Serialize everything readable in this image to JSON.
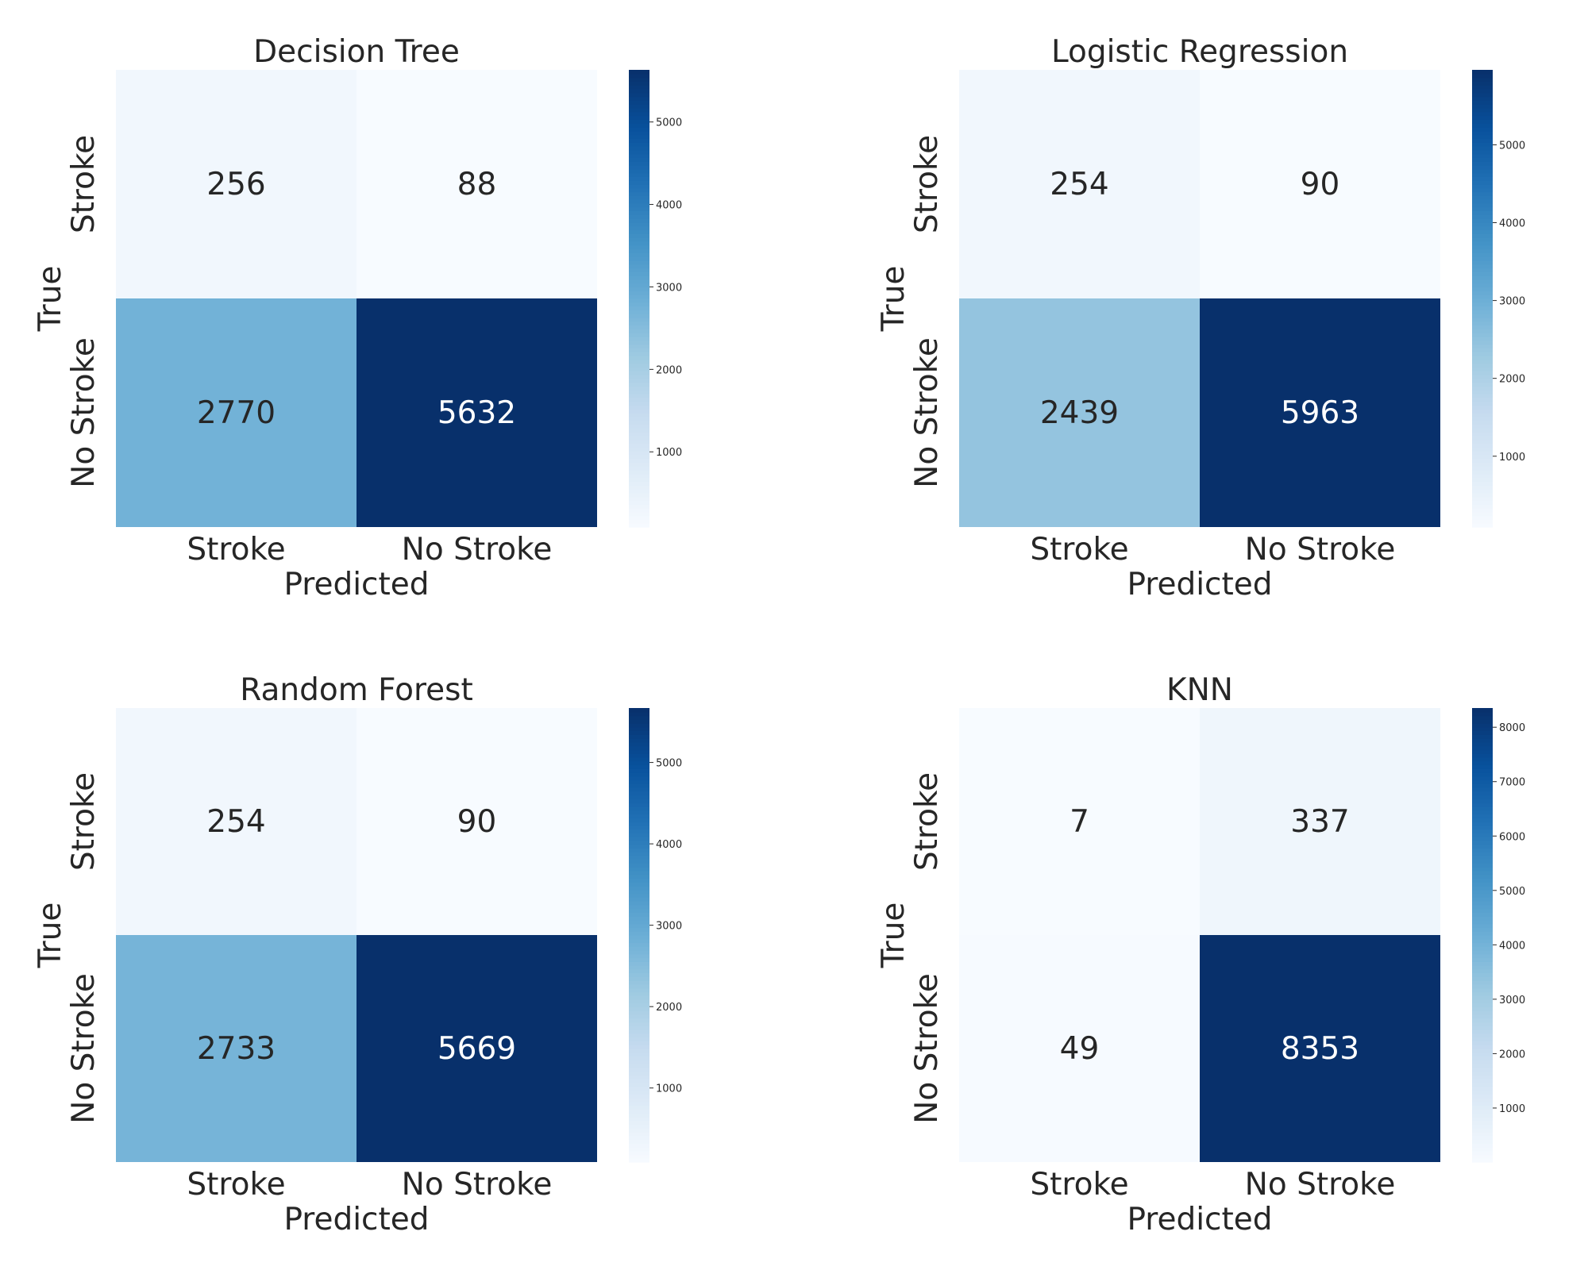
{
  "chart_data": [
    {
      "type": "heatmap",
      "title": "Decision Tree",
      "xlabel": "Predicted",
      "ylabel": "True",
      "x_categories": [
        "Stroke",
        "No Stroke"
      ],
      "y_categories": [
        "Stroke",
        "No Stroke"
      ],
      "values": [
        [
          256,
          88
        ],
        [
          2770,
          5632
        ]
      ],
      "colormap": "Blues",
      "colorbar": {
        "min": 88,
        "max": 5632,
        "ticks": [
          1000,
          2000,
          3000,
          4000,
          5000
        ]
      }
    },
    {
      "type": "heatmap",
      "title": "Logistic Regression",
      "xlabel": "Predicted",
      "ylabel": "True",
      "x_categories": [
        "Stroke",
        "No Stroke"
      ],
      "y_categories": [
        "Stroke",
        "No Stroke"
      ],
      "values": [
        [
          254,
          90
        ],
        [
          2439,
          5963
        ]
      ],
      "colormap": "Blues",
      "colorbar": {
        "min": 90,
        "max": 5963,
        "ticks": [
          1000,
          2000,
          3000,
          4000,
          5000
        ]
      }
    },
    {
      "type": "heatmap",
      "title": "Random Forest",
      "xlabel": "Predicted",
      "ylabel": "True",
      "x_categories": [
        "Stroke",
        "No Stroke"
      ],
      "y_categories": [
        "Stroke",
        "No Stroke"
      ],
      "values": [
        [
          254,
          90
        ],
        [
          2733,
          5669
        ]
      ],
      "colormap": "Blues",
      "colorbar": {
        "min": 90,
        "max": 5669,
        "ticks": [
          1000,
          2000,
          3000,
          4000,
          5000
        ]
      }
    },
    {
      "type": "heatmap",
      "title": "KNN",
      "xlabel": "Predicted",
      "ylabel": "True",
      "x_categories": [
        "Stroke",
        "No Stroke"
      ],
      "y_categories": [
        "Stroke",
        "No Stroke"
      ],
      "values": [
        [
          7,
          337
        ],
        [
          49,
          8353
        ]
      ],
      "colormap": "Blues",
      "colorbar": {
        "min": 7,
        "max": 8353,
        "ticks": [
          1000,
          2000,
          3000,
          4000,
          5000,
          6000,
          7000,
          8000
        ]
      }
    }
  ]
}
